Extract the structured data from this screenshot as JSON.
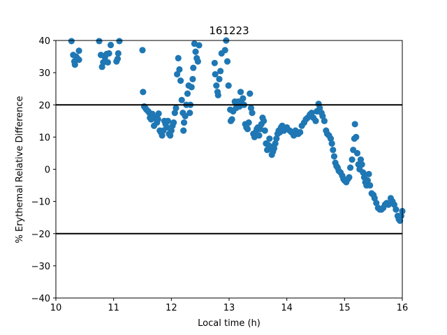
{
  "chart_data": {
    "type": "scatter",
    "title": "161223",
    "xlabel": "Local time (h)",
    "ylabel": "% Erythemal Relative Difference",
    "xlim": [
      10,
      16
    ],
    "ylim": [
      -40,
      40
    ],
    "xticks": [
      "10",
      "11",
      "12",
      "13",
      "14",
      "15",
      "16"
    ],
    "yticks": [
      "−40",
      "−30",
      "−20",
      "−10",
      "0",
      "10",
      "20",
      "30",
      "40"
    ],
    "grid": false,
    "marker_color": "#1f77b4",
    "reference_lines": [
      20,
      -20
    ],
    "reference_line_color": "#000000",
    "points": [
      [
        10.27,
        39.8
      ],
      [
        10.3,
        35.5
      ],
      [
        10.32,
        33.5
      ],
      [
        10.33,
        32.5
      ],
      [
        10.35,
        35
      ],
      [
        10.37,
        34.5
      ],
      [
        10.4,
        34
      ],
      [
        10.4,
        36.8
      ],
      [
        10.75,
        39.8
      ],
      [
        10.78,
        35.5
      ],
      [
        10.8,
        31.8
      ],
      [
        10.82,
        33.2
      ],
      [
        10.85,
        34.8
      ],
      [
        10.88,
        35.8
      ],
      [
        10.9,
        33.2
      ],
      [
        10.92,
        36
      ],
      [
        10.95,
        38.6
      ],
      [
        11.05,
        33.5
      ],
      [
        11.07,
        34.3
      ],
      [
        11.08,
        36
      ],
      [
        11.1,
        39.8
      ],
      [
        11.5,
        37
      ],
      [
        11.51,
        24
      ],
      [
        11.53,
        19.5
      ],
      [
        11.55,
        19
      ],
      [
        11.57,
        18.5
      ],
      [
        11.6,
        18
      ],
      [
        11.62,
        17.5
      ],
      [
        11.63,
        16
      ],
      [
        11.65,
        15.5
      ],
      [
        11.67,
        17.2
      ],
      [
        11.7,
        13.5
      ],
      [
        11.72,
        16
      ],
      [
        11.75,
        14.5
      ],
      [
        11.77,
        15.5
      ],
      [
        11.78,
        17.3
      ],
      [
        11.8,
        12
      ],
      [
        11.82,
        11.5
      ],
      [
        11.84,
        10.5
      ],
      [
        11.86,
        12
      ],
      [
        11.88,
        15
      ],
      [
        11.9,
        14
      ],
      [
        11.92,
        13
      ],
      [
        11.94,
        15
      ],
      [
        11.96,
        11
      ],
      [
        11.98,
        10.5
      ],
      [
        12.0,
        12
      ],
      [
        12.02,
        13.5
      ],
      [
        12.04,
        14.5
      ],
      [
        12.06,
        17.5
      ],
      [
        12.08,
        19
      ],
      [
        12.1,
        29.5
      ],
      [
        12.12,
        34.5
      ],
      [
        12.14,
        31
      ],
      [
        12.16,
        27.5
      ],
      [
        12.18,
        21.5
      ],
      [
        12.2,
        17.5
      ],
      [
        12.21,
        12
      ],
      [
        12.22,
        14.5
      ],
      [
        12.24,
        16.5
      ],
      [
        12.26,
        20
      ],
      [
        12.28,
        23.5
      ],
      [
        12.3,
        26
      ],
      [
        12.32,
        17.5
      ],
      [
        12.33,
        20
      ],
      [
        12.35,
        25.5
      ],
      [
        12.37,
        28
      ],
      [
        12.38,
        31.5
      ],
      [
        12.4,
        39
      ],
      [
        12.42,
        36.5
      ],
      [
        12.44,
        34.5
      ],
      [
        12.46,
        33.5
      ],
      [
        12.48,
        38.5
      ],
      [
        12.75,
        33
      ],
      [
        12.76,
        29.5
      ],
      [
        12.78,
        26
      ],
      [
        12.8,
        24
      ],
      [
        12.81,
        23
      ],
      [
        12.83,
        28
      ],
      [
        12.85,
        30.5
      ],
      [
        12.87,
        36
      ],
      [
        12.93,
        37
      ],
      [
        12.95,
        40
      ],
      [
        12.97,
        33.5
      ],
      [
        12.99,
        26
      ],
      [
        13.02,
        18.5
      ],
      [
        13.03,
        15
      ],
      [
        13.05,
        15.5
      ],
      [
        13.07,
        18
      ],
      [
        13.1,
        21
      ],
      [
        13.12,
        19
      ],
      [
        13.14,
        20.5
      ],
      [
        13.16,
        21
      ],
      [
        13.18,
        19.5
      ],
      [
        13.2,
        24
      ],
      [
        13.22,
        20.5
      ],
      [
        13.24,
        22
      ],
      [
        13.26,
        20
      ],
      [
        13.28,
        14
      ],
      [
        13.3,
        13
      ],
      [
        13.32,
        12.5
      ],
      [
        13.34,
        14.5
      ],
      [
        13.36,
        23.5
      ],
      [
        13.38,
        19
      ],
      [
        13.4,
        17.5
      ],
      [
        13.42,
        11
      ],
      [
        13.44,
        10
      ],
      [
        13.46,
        11.5
      ],
      [
        13.48,
        12.5
      ],
      [
        13.5,
        13
      ],
      [
        13.52,
        10.5
      ],
      [
        13.54,
        12.5
      ],
      [
        13.56,
        14
      ],
      [
        13.58,
        16
      ],
      [
        13.6,
        15
      ],
      [
        13.62,
        12
      ],
      [
        13.64,
        8
      ],
      [
        13.66,
        6
      ],
      [
        13.68,
        7.5
      ],
      [
        13.7,
        9.5
      ],
      [
        13.72,
        7
      ],
      [
        13.74,
        4.5
      ],
      [
        13.76,
        5.5
      ],
      [
        13.78,
        6.5
      ],
      [
        13.8,
        8
      ],
      [
        13.82,
        9.5
      ],
      [
        13.84,
        11
      ],
      [
        13.86,
        12
      ],
      [
        13.88,
        11.5
      ],
      [
        13.9,
        13
      ],
      [
        13.92,
        13.5
      ],
      [
        13.95,
        12
      ],
      [
        13.98,
        12.5
      ],
      [
        14.0,
        13
      ],
      [
        14.05,
        12
      ],
      [
        14.08,
        11.5
      ],
      [
        14.12,
        10.5
      ],
      [
        14.15,
        12
      ],
      [
        14.18,
        11
      ],
      [
        14.2,
        11
      ],
      [
        14.23,
        11.5
      ],
      [
        14.26,
        13.5
      ],
      [
        14.3,
        14.5
      ],
      [
        14.33,
        15.5
      ],
      [
        14.36,
        16
      ],
      [
        14.4,
        17
      ],
      [
        14.43,
        17.5
      ],
      [
        14.46,
        16
      ],
      [
        14.5,
        15
      ],
      [
        14.52,
        18
      ],
      [
        14.55,
        20.3
      ],
      [
        14.57,
        19
      ],
      [
        14.6,
        17.5
      ],
      [
        14.62,
        16.5
      ],
      [
        14.65,
        15
      ],
      [
        14.68,
        12
      ],
      [
        14.7,
        11
      ],
      [
        14.73,
        10.5
      ],
      [
        14.76,
        9.5
      ],
      [
        14.78,
        8
      ],
      [
        14.8,
        6
      ],
      [
        14.82,
        4
      ],
      [
        14.84,
        2
      ],
      [
        14.86,
        1
      ],
      [
        14.88,
        0.5
      ],
      [
        14.9,
        -0.5
      ],
      [
        14.93,
        -1
      ],
      [
        14.96,
        -2
      ],
      [
        14.98,
        -3
      ],
      [
        15.0,
        -3.5
      ],
      [
        15.03,
        -4
      ],
      [
        15.06,
        -3
      ],
      [
        15.08,
        -2.5
      ],
      [
        15.1,
        0.5
      ],
      [
        15.13,
        3
      ],
      [
        15.15,
        6
      ],
      [
        15.17,
        9.5
      ],
      [
        15.18,
        14
      ],
      [
        15.2,
        10
      ],
      [
        15.22,
        5
      ],
      [
        15.24,
        1.5
      ],
      [
        15.26,
        0
      ],
      [
        15.28,
        3
      ],
      [
        15.3,
        1.5
      ],
      [
        15.32,
        -1
      ],
      [
        15.34,
        -2.5
      ],
      [
        15.36,
        -4
      ],
      [
        15.38,
        -5
      ],
      [
        15.4,
        -3.5
      ],
      [
        15.42,
        -1.5
      ],
      [
        15.44,
        -5
      ],
      [
        15.47,
        -7.5
      ],
      [
        15.5,
        -8
      ],
      [
        15.52,
        -9
      ],
      [
        15.55,
        -10.5
      ],
      [
        15.58,
        -12
      ],
      [
        15.61,
        -12.5
      ],
      [
        15.64,
        -12.5
      ],
      [
        15.67,
        -12
      ],
      [
        15.7,
        -11
      ],
      [
        15.73,
        -10.5
      ],
      [
        15.76,
        -11
      ],
      [
        15.8,
        -9
      ],
      [
        15.83,
        -10
      ],
      [
        15.86,
        -11
      ],
      [
        15.89,
        -12.5
      ],
      [
        15.92,
        -14.5
      ],
      [
        15.94,
        -15.5
      ],
      [
        15.96,
        -16
      ],
      [
        15.98,
        -14.5
      ],
      [
        16.0,
        -13
      ]
    ]
  }
}
